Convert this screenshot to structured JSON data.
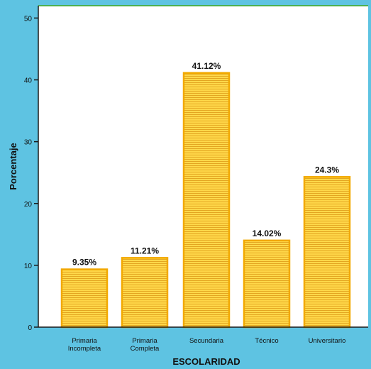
{
  "colors": {
    "panel_background": "#5EC3E2",
    "plot_background": "#FFFFFF",
    "top_border": "#4CAF50",
    "bar_fill": "#FFD84A",
    "bar_stripe": "#E3A520",
    "bar_stroke": "#F2A900",
    "axis": "#1A1A1A",
    "text": "#111111"
  },
  "chart_data": {
    "type": "bar",
    "title": "",
    "xlabel": "ESCOLARIDAD",
    "ylabel": "Porcentaje",
    "ylim": [
      0,
      52
    ],
    "yticks": [
      0,
      10,
      20,
      30,
      40,
      50
    ],
    "grid": false,
    "legend": "none",
    "categories": [
      [
        "Primaria",
        "Incompleta"
      ],
      [
        "Primaria",
        "Completa"
      ],
      [
        "Secundaria"
      ],
      [
        "Técnico"
      ],
      [
        "Universitario"
      ]
    ],
    "values": [
      9.35,
      11.21,
      41.12,
      14.02,
      24.3
    ],
    "data_labels": [
      "9.35%",
      "11.21%",
      "41.12%",
      "14.02%",
      "24.3%"
    ]
  }
}
